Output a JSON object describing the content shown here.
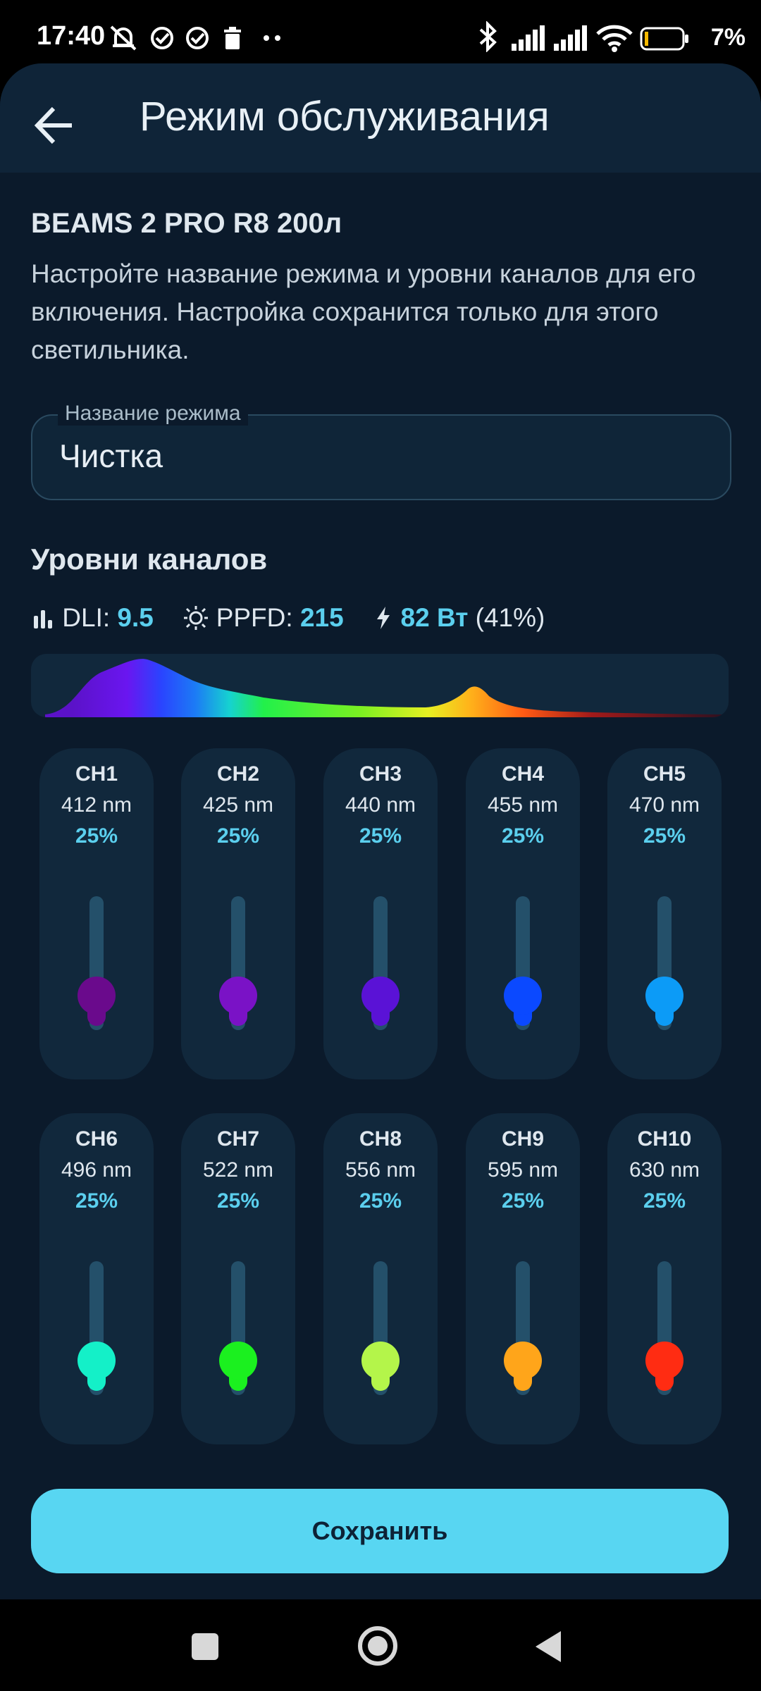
{
  "status_bar": {
    "time": "17:40",
    "battery": "7%"
  },
  "header": {
    "title": "Режим обслуживания"
  },
  "device": {
    "name": "BEAMS 2 PRO R8 200л",
    "description": "Настройте название режима и уровни каналов для его включения. Настройка сохранится только для этого светильника."
  },
  "mode_field": {
    "label": "Название режима",
    "value": "Чистка"
  },
  "channels_section": {
    "title": "Уровни каналов",
    "dli_label": "DLI:",
    "dli_value": "9.5",
    "ppfd_label": "PPFD:",
    "ppfd_value": "215",
    "power_value": "82 Вт",
    "power_pct": "(41%)"
  },
  "channels": [
    {
      "name": "CH1",
      "wavelength": "412 nm",
      "level": "25%",
      "color": "#6a0a8c"
    },
    {
      "name": "CH2",
      "wavelength": "425 nm",
      "level": "25%",
      "color": "#7a12c6"
    },
    {
      "name": "CH3",
      "wavelength": "440 nm",
      "level": "25%",
      "color": "#5a12d6"
    },
    {
      "name": "CH4",
      "wavelength": "455 nm",
      "level": "25%",
      "color": "#0b49ff"
    },
    {
      "name": "CH5",
      "wavelength": "470 nm",
      "level": "25%",
      "color": "#0c9bf7"
    },
    {
      "name": "CH6",
      "wavelength": "496 nm",
      "level": "25%",
      "color": "#14f0c8"
    },
    {
      "name": "CH7",
      "wavelength": "522 nm",
      "level": "25%",
      "color": "#1bf01f"
    },
    {
      "name": "CH8",
      "wavelength": "556 nm",
      "level": "25%",
      "color": "#b4f54a"
    },
    {
      "name": "CH9",
      "wavelength": "595 nm",
      "level": "25%",
      "color": "#ffa51a"
    },
    {
      "name": "CH10",
      "wavelength": "630 nm",
      "level": "25%",
      "color": "#ff2c12"
    }
  ],
  "actions": {
    "save_label": "Сохранить"
  }
}
